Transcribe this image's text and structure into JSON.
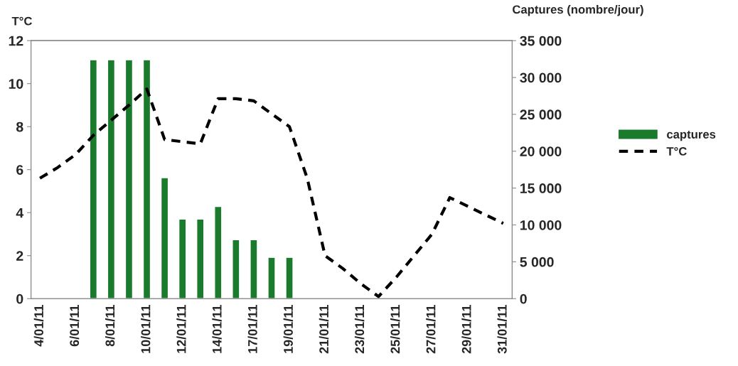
{
  "chart_data": {
    "type": "bar",
    "categories": [
      "4/01/11",
      null,
      "6/01/11",
      null,
      "8/01/11",
      null,
      "10/01/11",
      null,
      "12/01/11",
      null,
      "14/01/11",
      null,
      "17/01/11",
      null,
      "19/01/11",
      null,
      "21/01/11",
      null,
      "23/01/11",
      null,
      "25/01/11",
      null,
      "27/01/11",
      null,
      "29/01/11",
      null,
      "31/01/11"
    ],
    "series": [
      {
        "name": "captures",
        "axis": "y2",
        "color": "#1b7b2c",
        "values": [
          null,
          null,
          null,
          32400,
          32400,
          32400,
          32400,
          16400,
          10800,
          10800,
          12500,
          8000,
          8000,
          5600,
          5600,
          null,
          null,
          null,
          null,
          null,
          null,
          null,
          null,
          null,
          null,
          null,
          null
        ]
      },
      {
        "name": "T°C",
        "type": "line",
        "axis": "y",
        "color": "#000000",
        "line_style": "dashed",
        "values": [
          5.6,
          6.1,
          6.7,
          7.6,
          8.3,
          9.0,
          9.75,
          7.4,
          7.3,
          7.2,
          9.3,
          9.3,
          9.2,
          8.6,
          8.0,
          5.6,
          2.0,
          1.4,
          0.7,
          0.1,
          1.0,
          2.0,
          3.0,
          4.7,
          4.3,
          3.9,
          3.5
        ]
      }
    ],
    "ylabel": "T°C",
    "y2label": "Captures (nombre/jour)",
    "ylim": [
      0,
      12
    ],
    "yticks": [
      0,
      2,
      4,
      6,
      8,
      10,
      12
    ],
    "y2lim": [
      0,
      35000
    ],
    "y2ticks": [
      {
        "value": 0,
        "label": "0"
      },
      {
        "value": 5000,
        "label": "5 000"
      },
      {
        "value": 10000,
        "label": "10 000"
      },
      {
        "value": 15000,
        "label": "15 000"
      },
      {
        "value": 20000,
        "label": "20 000"
      },
      {
        "value": 25000,
        "label": "25 000"
      },
      {
        "value": 30000,
        "label": "30 000"
      },
      {
        "value": 35000,
        "label": "35 000"
      }
    ],
    "legend": "right",
    "grid": false
  }
}
